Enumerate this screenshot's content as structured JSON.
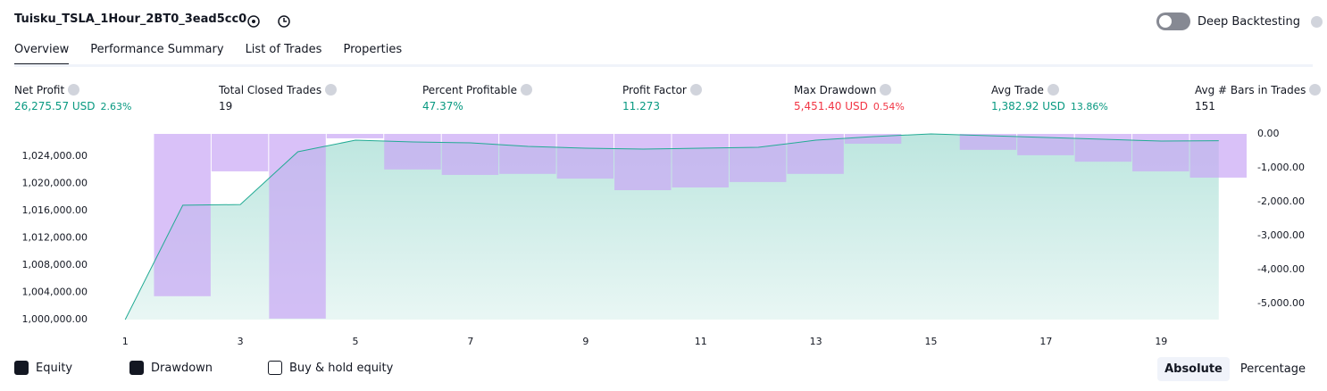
{
  "header": {
    "title": "Tuisku_TSLA_1Hour_2BT0_3ead5cc0",
    "toggle_label": "Deep Backtesting"
  },
  "tabs": [
    "Overview",
    "Performance Summary",
    "List of Trades",
    "Properties"
  ],
  "stats": [
    {
      "label": "Net Profit",
      "value": "26,275.57 USD",
      "percent": "2.63%"
    },
    {
      "label": "Total Closed Trades",
      "value": "19"
    },
    {
      "label": "Percent Profitable",
      "value": "47.37%"
    },
    {
      "label": "Profit Factor",
      "value": "11.273"
    },
    {
      "label": "Max Drawdown",
      "value": "5,451.40 USD",
      "percent": "0.54%"
    },
    {
      "label": "Avg Trade",
      "value": "1,382.92 USD",
      "percent": "13.86%"
    },
    {
      "label": "Avg # Bars in Trades",
      "value": "151"
    }
  ],
  "chart_data": {
    "type": "combo",
    "x": [
      1,
      2,
      3,
      4,
      5,
      6,
      7,
      8,
      9,
      10,
      11,
      12,
      13,
      14,
      15,
      16,
      17,
      18,
      19,
      20
    ],
    "xlim": [
      0.5,
      20.5
    ],
    "xticks": [
      1,
      3,
      5,
      7,
      9,
      11,
      13,
      15,
      17,
      19
    ],
    "ylim": [
      1000000,
      1027280
    ],
    "yticks": [
      {
        "value": 1000000,
        "label": "1,000,000.00"
      },
      {
        "value": 1004000,
        "label": "1,004,000.00"
      },
      {
        "value": 1008000,
        "label": "1,008,000.00"
      },
      {
        "value": 1012000,
        "label": "1,012,000.00"
      },
      {
        "value": 1016000,
        "label": "1,016,000.00"
      },
      {
        "value": 1020000,
        "label": "1,020,000.00"
      },
      {
        "value": 1024000,
        "label": "1,024,000.00"
      }
    ],
    "y2lim": [
      -5480,
      0
    ],
    "y2ticks": [
      {
        "value": 0,
        "label": "0.00"
      },
      {
        "value": -1000,
        "label": "-1,000.00"
      },
      {
        "value": -2000,
        "label": "-2,000.00"
      },
      {
        "value": -3000,
        "label": "-3,000.00"
      },
      {
        "value": -4000,
        "label": "-4,000.00"
      },
      {
        "value": -5000,
        "label": "-5,000.00"
      }
    ],
    "series": [
      {
        "name": "Equity",
        "color": "#22ab94",
        "values": [
          1000000,
          1016800,
          1016900,
          1024660,
          1026360,
          1026100,
          1025970,
          1025440,
          1025180,
          1025050,
          1025180,
          1025310,
          1026360,
          1026890,
          1027280,
          1027020,
          1026750,
          1026490,
          1026230,
          1026275
        ]
      },
      {
        "name": "Drawdown",
        "color": "#c9a6f5",
        "axis": "y2",
        "values": [
          0,
          -4790,
          -1105,
          -5451,
          -130,
          -1050,
          -1210,
          -1180,
          -1320,
          -1660,
          -1580,
          -1420,
          -1180,
          -290,
          0,
          -470,
          -630,
          -820,
          -1105,
          -1290
        ]
      }
    ],
    "buy_hold_label": "Buy & hold equity"
  },
  "view_modes": [
    "Absolute",
    "Percentage"
  ]
}
